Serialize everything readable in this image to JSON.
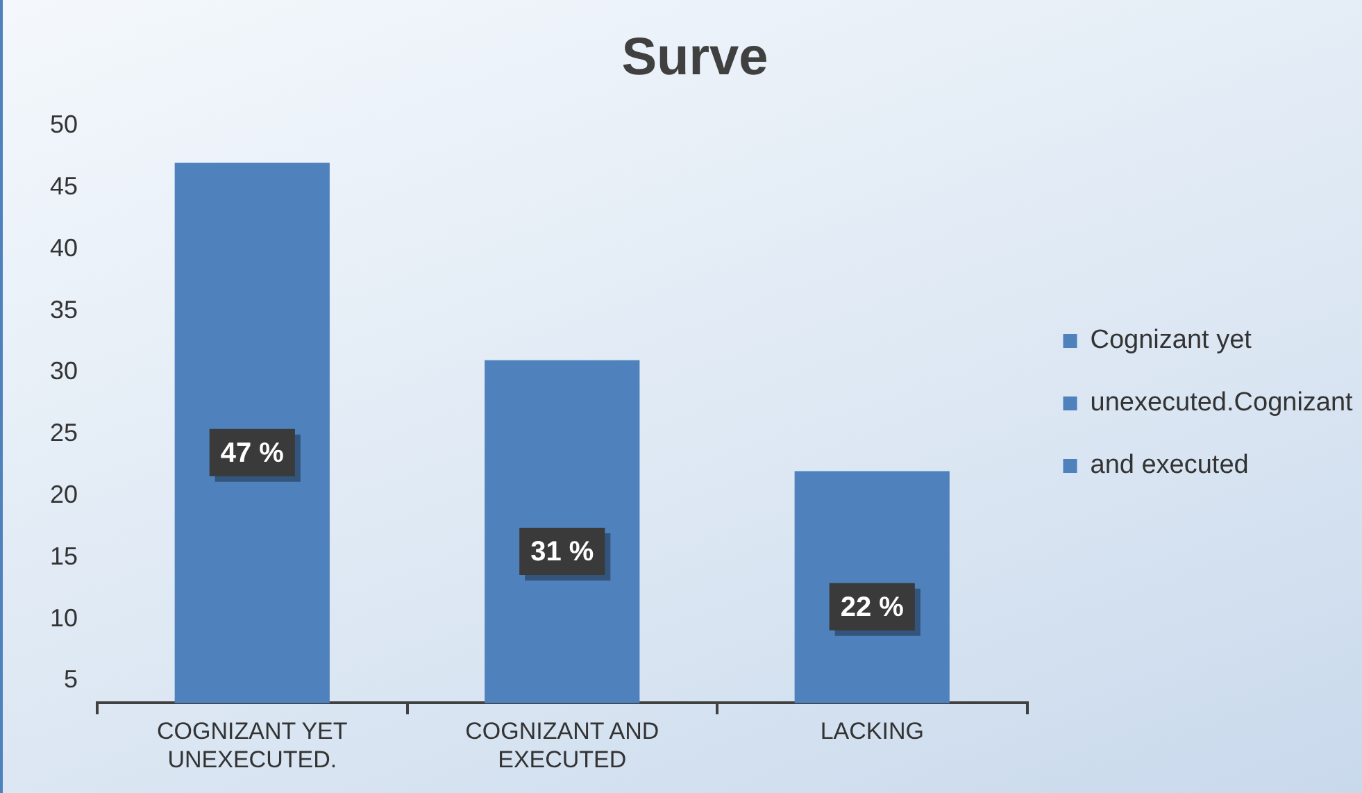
{
  "chart_data": {
    "type": "bar",
    "title": "Surve",
    "categories": [
      "COGNIZANT YET\nUNEXECUTED.",
      "COGNIZANT AND\nEXECUTED",
      "LACKING"
    ],
    "stacked": true,
    "series": [
      {
        "name": "Cognizant yet",
        "color": "#4f81bd",
        "values": [
          47,
          null,
          null
        ],
        "value_labels": [
          "47 %",
          null,
          null
        ]
      },
      {
        "name": "unexecuted.Cognizant",
        "color": "#4f81bd",
        "values": [
          null,
          31,
          null
        ],
        "value_labels": [
          null,
          "31 %",
          null
        ]
      },
      {
        "name": "and executed",
        "color": "#4f81bd",
        "values": [
          null,
          null,
          22
        ],
        "value_labels": [
          null,
          null,
          "22 %"
        ]
      }
    ],
    "ylim": [
      3.2,
      50
    ],
    "yticks": [
      5,
      10,
      15,
      20,
      25,
      30,
      35,
      40,
      45,
      50
    ],
    "grid": false,
    "legend": "right"
  }
}
